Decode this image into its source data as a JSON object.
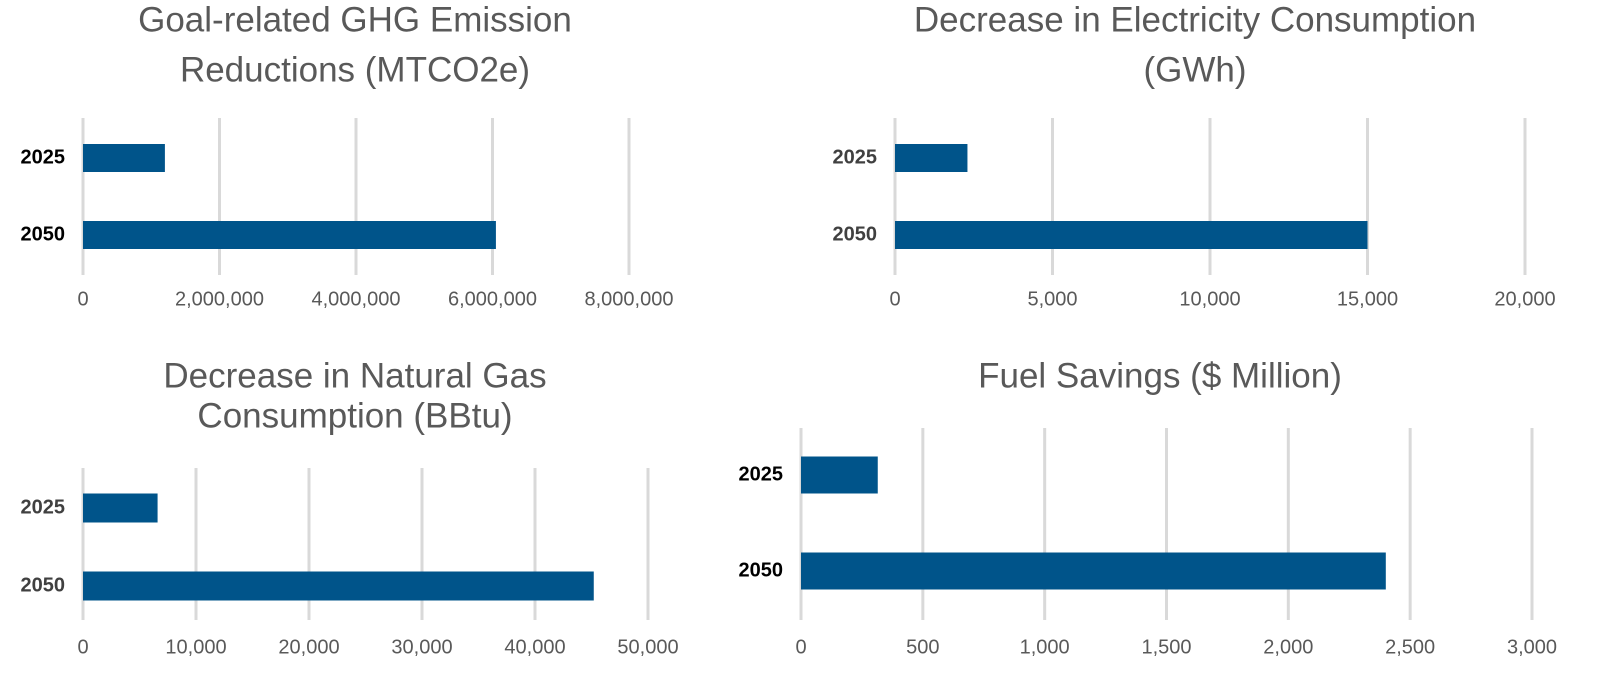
{
  "chart_data": [
    {
      "type": "bar",
      "orientation": "horizontal",
      "title": [
        "Goal-related GHG Emission",
        "Reductions (MTCO2e)"
      ],
      "categories": [
        "2025",
        "2050"
      ],
      "values": [
        1200000,
        6050000
      ],
      "color": "#00548a",
      "xlim": [
        0,
        8000000
      ],
      "xticks": [
        0,
        {
          "value": 2000000,
          "label": "2,000,000"
        },
        {
          "value": 4000000,
          "label": "4,000,000"
        },
        {
          "value": 6000000,
          "label": "6,000,000"
        },
        {
          "value": 8000000,
          "label": "8,000,000"
        }
      ],
      "grid": true
    },
    {
      "type": "bar",
      "orientation": "horizontal",
      "title": [
        "Decrease in Electricity Consumption",
        "(GWh)"
      ],
      "categories": [
        "2025",
        "2050"
      ],
      "values": [
        2300,
        15000
      ],
      "color": "#00548a",
      "xlim": [
        0,
        20000
      ],
      "xticks": [
        0,
        {
          "value": 5000,
          "label": "5,000"
        },
        {
          "value": 10000,
          "label": "10,000"
        },
        {
          "value": 15000,
          "label": "15,000"
        },
        {
          "value": 20000,
          "label": "20,000"
        }
      ],
      "grid": true
    },
    {
      "type": "bar",
      "orientation": "horizontal",
      "title": [
        "Decrease in Natural Gas",
        "Consumption (BBtu)"
      ],
      "categories": [
        "2025",
        "2050"
      ],
      "values": [
        6600,
        45200
      ],
      "color": "#00548a",
      "xlim": [
        0,
        50000
      ],
      "xticks": [
        0,
        {
          "value": 10000,
          "label": "10,000"
        },
        {
          "value": 20000,
          "label": "20,000"
        },
        {
          "value": 30000,
          "label": "30,000"
        },
        {
          "value": 40000,
          "label": "40,000"
        },
        {
          "value": 50000,
          "label": "50,000"
        }
      ],
      "grid": true
    },
    {
      "type": "bar",
      "orientation": "horizontal",
      "title": [
        "Fuel Savings ($ Million)"
      ],
      "categories": [
        "2025",
        "2050"
      ],
      "values": [
        315,
        2400
      ],
      "color": "#00548a",
      "xlim": [
        0,
        3000
      ],
      "xticks": [
        0,
        500,
        {
          "value": 1000,
          "label": "1,000"
        },
        {
          "value": 1500,
          "label": "1,500"
        },
        {
          "value": 2000,
          "label": "2,000"
        },
        {
          "value": 2500,
          "label": "2,500"
        },
        {
          "value": 3000,
          "label": "3,000"
        }
      ],
      "grid": true
    }
  ]
}
